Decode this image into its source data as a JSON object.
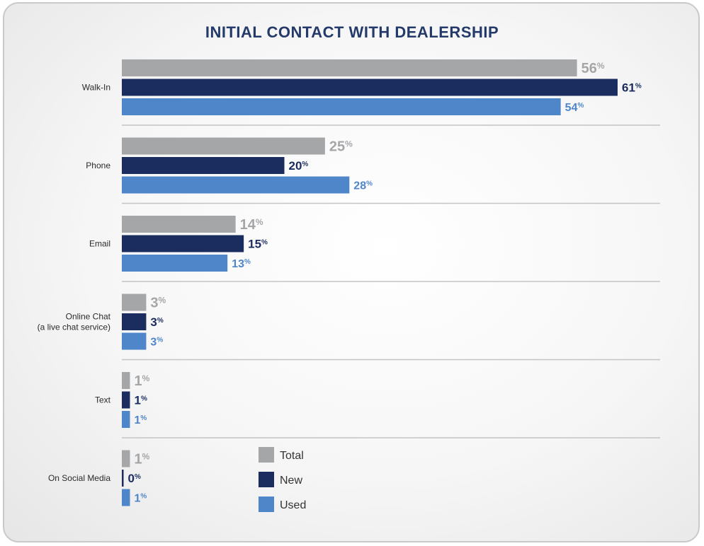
{
  "chart_data": {
    "type": "bar",
    "orientation": "horizontal",
    "title": "INITIAL CONTACT WITH DEALERSHIP",
    "categories": [
      "Walk-In",
      "Phone",
      "Email",
      "Online Chat\n(a live chat service)",
      "Text",
      "On Social Media"
    ],
    "series": [
      {
        "name": "Total",
        "color": "#a5a6a8",
        "values": [
          56,
          25,
          14,
          3,
          1,
          1
        ]
      },
      {
        "name": "New",
        "color": "#1b2d5e",
        "values": [
          61,
          20,
          15,
          3,
          1,
          0
        ]
      },
      {
        "name": "Used",
        "color": "#4f86c9",
        "values": [
          54,
          28,
          13,
          3,
          1,
          1
        ]
      }
    ],
    "value_suffix": "%",
    "xlim": [
      0,
      61
    ],
    "legend_position": "bottom-center",
    "grid": false
  }
}
